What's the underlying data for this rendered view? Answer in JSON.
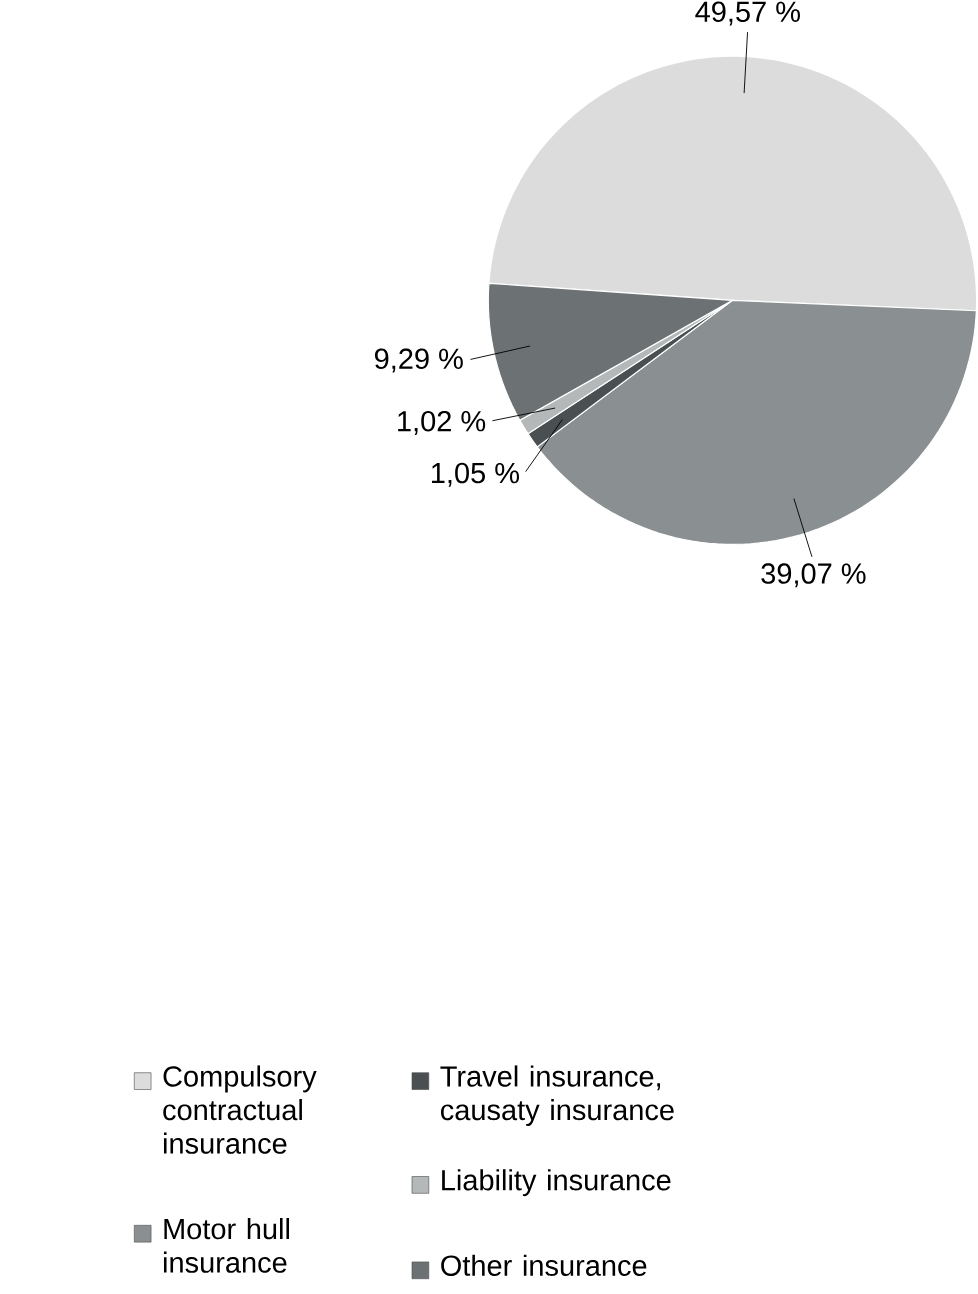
{
  "chart_data": {
    "type": "pie",
    "categories": [
      "Compulsory contractual insurance",
      "Motor hull insurance",
      "Travel insurance, causaty insurance",
      "Liability insurance",
      "Other insurance"
    ],
    "values": [
      49.57,
      39.07,
      1.05,
      1.02,
      9.29
    ],
    "value_labels": [
      "49,57 %",
      "39,07 %",
      "1,05 %",
      "1,02 %",
      "9,29 %"
    ],
    "colors": [
      "#dcdcdc",
      "#8a9091",
      "#4a5051",
      "#b4b8b8",
      "#6c7273"
    ],
    "legend": "bottom"
  }
}
